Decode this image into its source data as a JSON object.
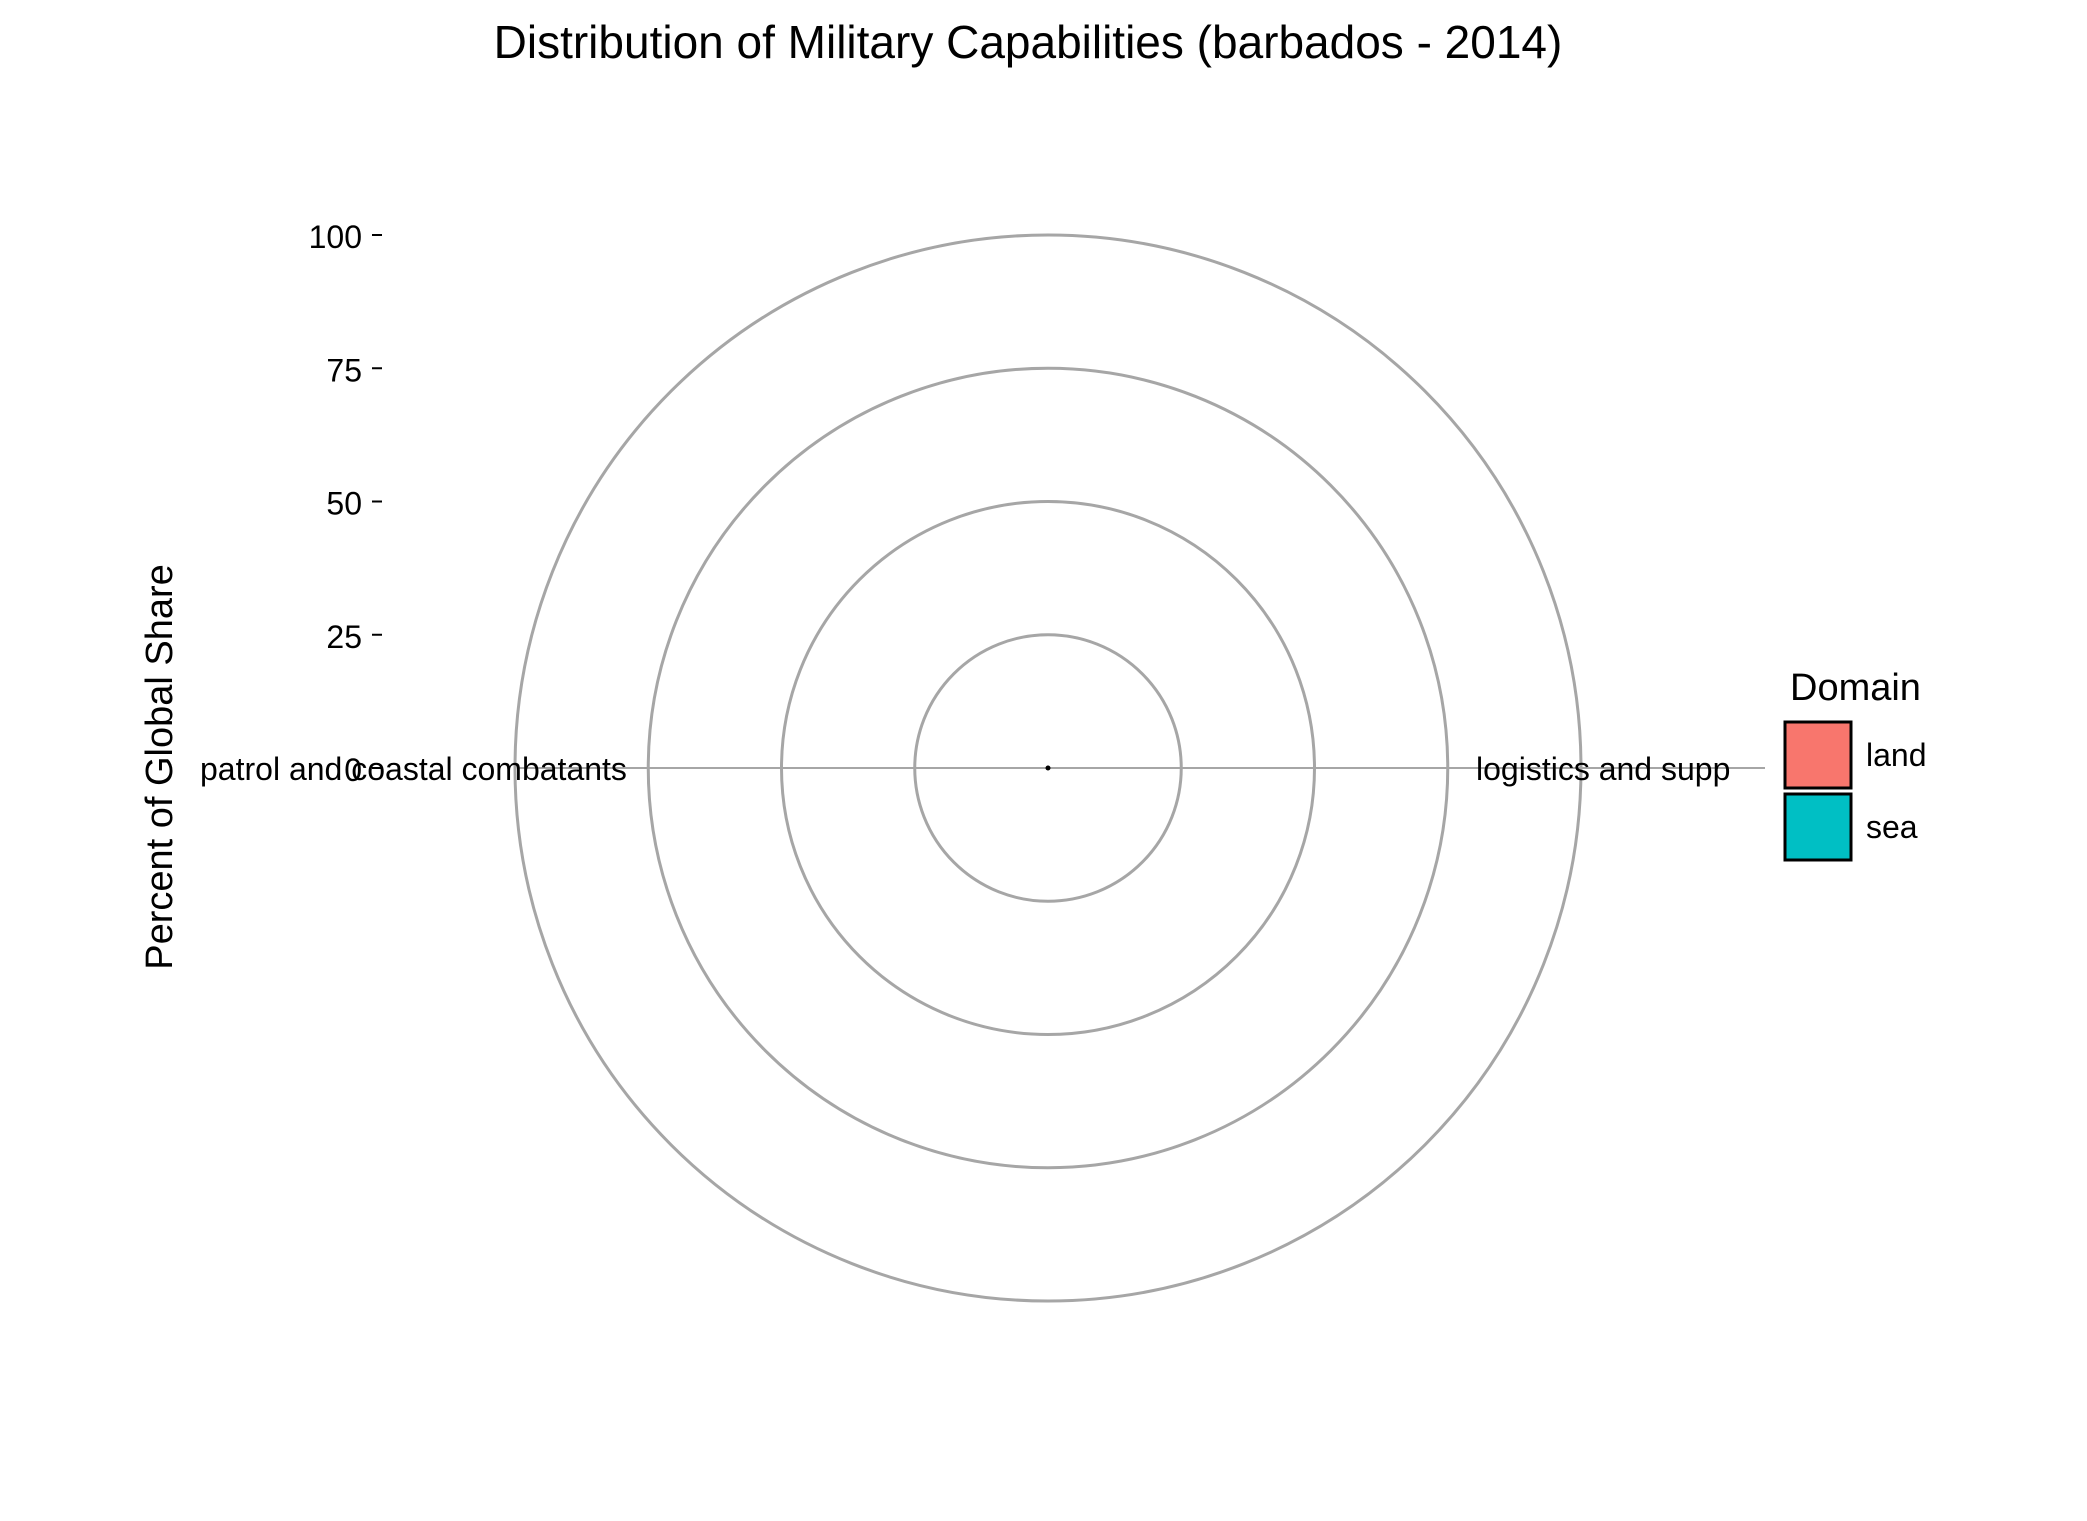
{
  "chart_data": {
    "type": "radar",
    "title": "Distribution of Military Capabilities (barbados - 2014)",
    "ylabel": "Percent of Global Share",
    "xlabel": "",
    "ylim": [
      0,
      100
    ],
    "y_ticks": [
      "100",
      "75",
      "50",
      "25",
      "0"
    ],
    "y_tick_values": [
      100,
      75,
      50,
      25,
      0
    ],
    "categories": [
      "logistics and support",
      "patrol and coastal combatants"
    ],
    "category_labels_visible": [
      "logistics and supp",
      "patrol and coastal combatants"
    ],
    "series": [
      {
        "domain": "sea",
        "values": [
          0,
          0
        ]
      }
    ],
    "legend": {
      "title": "Domain",
      "position": "right",
      "items": [
        {
          "label": "land",
          "color": "#F8766D"
        },
        {
          "label": "sea",
          "color": "#00BFC4"
        }
      ]
    },
    "grid": true,
    "colors": {
      "grid": "#a6a6a6",
      "text": "#000000"
    }
  }
}
